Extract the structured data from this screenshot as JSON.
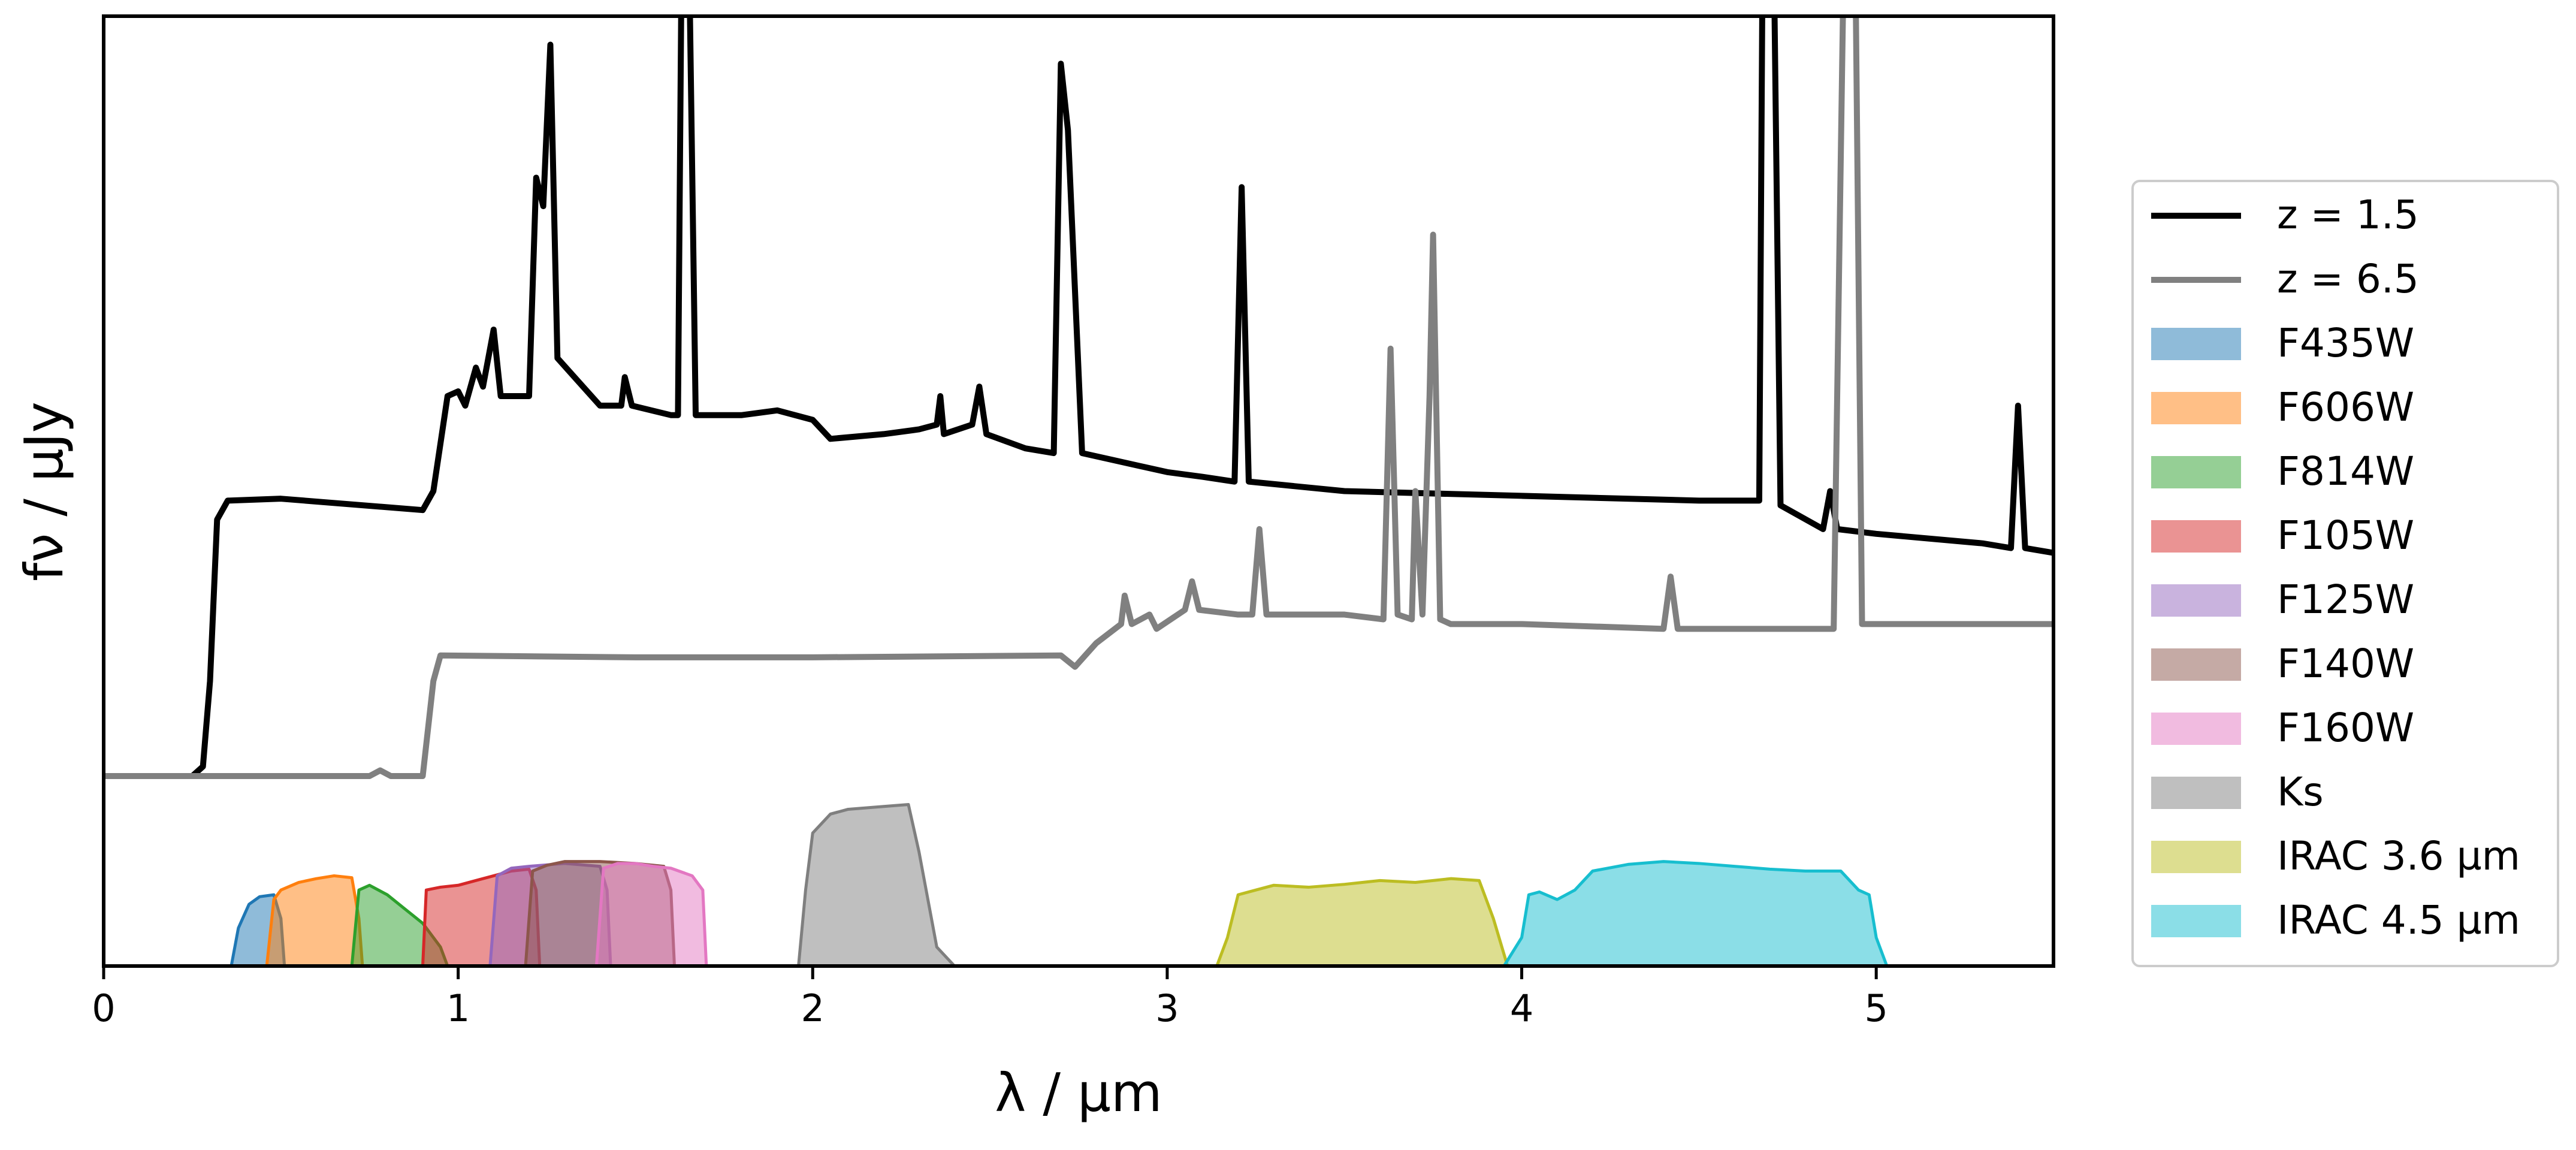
{
  "chart_data": {
    "type": "line",
    "xlabel": "λ / μm",
    "ylabel": "fν / μJy",
    "xlim": [
      0,
      5.5
    ],
    "ylim": [
      0,
      100
    ],
    "xticks": [
      0,
      1,
      2,
      3,
      4,
      5
    ],
    "legend": "outside right",
    "series": [
      {
        "name": "z = 1.5",
        "kind": "line",
        "color": "#000000",
        "x": [
          0,
          0.25,
          0.28,
          0.3,
          0.32,
          0.35,
          0.5,
          0.9,
          0.93,
          0.97,
          1.0,
          1.02,
          1.05,
          1.07,
          1.1,
          1.12,
          1.2,
          1.22,
          1.24,
          1.26,
          1.28,
          1.4,
          1.46,
          1.47,
          1.49,
          1.6,
          1.62,
          1.63,
          1.65,
          1.67,
          1.8,
          1.9,
          2.0,
          2.05,
          2.2,
          2.3,
          2.35,
          2.36,
          2.37,
          2.45,
          2.47,
          2.49,
          2.6,
          2.68,
          2.7,
          2.72,
          2.76,
          3.0,
          3.1,
          3.19,
          3.21,
          3.23,
          3.5,
          4.0,
          4.5,
          4.67,
          4.68,
          4.71,
          4.73,
          4.85,
          4.87,
          4.89,
          5.0,
          5.3,
          5.38,
          5.4,
          5.42,
          5.5
        ],
        "values": [
          20,
          20,
          21,
          30,
          47,
          49,
          49.2,
          48,
          50,
          60,
          60.5,
          59,
          63,
          61,
          67,
          60,
          60,
          83,
          80,
          97,
          64,
          59,
          59,
          62,
          59,
          58,
          58,
          105,
          110,
          58,
          58,
          58.5,
          57.5,
          55.5,
          56,
          56.5,
          57,
          60,
          56,
          57,
          61,
          56,
          54.5,
          54,
          95,
          88,
          54,
          52,
          51.5,
          51,
          82,
          51,
          50,
          49.5,
          49,
          49,
          110,
          110,
          48.5,
          46,
          50,
          46,
          45.5,
          44.5,
          44,
          59,
          44,
          43.5
        ]
      },
      {
        "name": "z = 6.5",
        "kind": "line",
        "color": "#808080",
        "x": [
          0,
          0.75,
          0.78,
          0.81,
          0.9,
          0.93,
          0.95,
          1.5,
          2.0,
          2.7,
          2.74,
          2.8,
          2.87,
          2.88,
          2.9,
          2.95,
          2.97,
          3.05,
          3.07,
          3.09,
          3.2,
          3.24,
          3.26,
          3.28,
          3.5,
          3.61,
          3.63,
          3.65,
          3.69,
          3.7,
          3.72,
          3.74,
          3.75,
          3.77,
          3.8,
          4.0,
          4.4,
          4.42,
          4.44,
          4.88,
          4.91,
          4.94,
          4.96,
          5.5
        ],
        "values": [
          20,
          20,
          20.6,
          20,
          20,
          30,
          32.7,
          32.5,
          32.5,
          32.7,
          31.5,
          34,
          36,
          39,
          36,
          37,
          35.5,
          37.5,
          40.5,
          37.5,
          37,
          37,
          46,
          37,
          37,
          36.5,
          65,
          37,
          36.5,
          50,
          37,
          60,
          77,
          36.5,
          36,
          36,
          35.5,
          41,
          35.5,
          35.5,
          110,
          110,
          36,
          36
        ]
      },
      {
        "name": "F435W",
        "kind": "area",
        "color": "#1f77b4",
        "x": [
          0.36,
          0.38,
          0.41,
          0.44,
          0.48,
          0.5,
          0.51
        ],
        "values": [
          0,
          4,
          6.5,
          7.3,
          7.5,
          5,
          0
        ]
      },
      {
        "name": "F606W",
        "kind": "area",
        "color": "#ff7f0e",
        "x": [
          0.46,
          0.48,
          0.5,
          0.55,
          0.6,
          0.65,
          0.7,
          0.72,
          0.73
        ],
        "values": [
          0,
          7,
          8,
          8.8,
          9.2,
          9.5,
          9.3,
          5,
          0
        ]
      },
      {
        "name": "F814W",
        "kind": "area",
        "color": "#2ca02c",
        "x": [
          0.7,
          0.72,
          0.75,
          0.8,
          0.85,
          0.9,
          0.95,
          0.97
        ],
        "values": [
          0,
          8,
          8.5,
          7.5,
          6,
          4.5,
          2,
          0
        ]
      },
      {
        "name": "F105W",
        "kind": "area",
        "color": "#d62728",
        "x": [
          0.9,
          0.91,
          0.95,
          1.0,
          1.05,
          1.1,
          1.15,
          1.2,
          1.22,
          1.23
        ],
        "values": [
          0,
          8,
          8.3,
          8.5,
          9,
          9.5,
          10,
          10.2,
          8,
          0
        ]
      },
      {
        "name": "F125W",
        "kind": "area",
        "color": "#9467bd",
        "x": [
          1.09,
          1.11,
          1.15,
          1.2,
          1.3,
          1.4,
          1.42,
          1.43
        ],
        "values": [
          0,
          9.5,
          10.3,
          10.5,
          10.8,
          10.5,
          8,
          0
        ]
      },
      {
        "name": "F140W",
        "kind": "area",
        "color": "#8c564b",
        "x": [
          1.19,
          1.21,
          1.25,
          1.3,
          1.4,
          1.5,
          1.58,
          1.6,
          1.61
        ],
        "values": [
          0,
          10,
          10.6,
          11,
          11,
          10.8,
          10.5,
          8,
          0
        ]
      },
      {
        "name": "F160W",
        "kind": "area",
        "color": "#e377c2",
        "x": [
          1.39,
          1.41,
          1.45,
          1.5,
          1.55,
          1.6,
          1.66,
          1.69,
          1.7
        ],
        "values": [
          0,
          10.3,
          10.8,
          10.8,
          10.5,
          10.3,
          9.5,
          8,
          0
        ]
      },
      {
        "name": "Ks",
        "kind": "area",
        "color": "#7f7f7f",
        "x": [
          1.96,
          1.98,
          2.0,
          2.05,
          2.1,
          2.2,
          2.27,
          2.3,
          2.35,
          2.4
        ],
        "values": [
          0,
          8,
          14,
          16,
          16.5,
          16.8,
          17,
          12,
          2,
          0
        ]
      },
      {
        "name": "IRAC 3.6 µm",
        "kind": "area",
        "color": "#bcbd22",
        "x": [
          3.14,
          3.17,
          3.2,
          3.25,
          3.3,
          3.4,
          3.5,
          3.6,
          3.7,
          3.8,
          3.88,
          3.92,
          3.96
        ],
        "values": [
          0,
          3,
          7.5,
          8,
          8.5,
          8.3,
          8.6,
          9,
          8.8,
          9.2,
          9,
          5,
          0
        ]
      },
      {
        "name": "IRAC 4.5 µm",
        "kind": "area",
        "color": "#17becf",
        "x": [
          3.95,
          4.0,
          4.02,
          4.05,
          4.1,
          4.15,
          4.2,
          4.3,
          4.4,
          4.5,
          4.6,
          4.7,
          4.8,
          4.9,
          4.95,
          4.98,
          5.0,
          5.03
        ],
        "values": [
          0,
          3,
          7.5,
          7.8,
          7,
          8,
          10,
          10.7,
          11,
          10.8,
          10.5,
          10.2,
          10,
          10,
          8,
          7.5,
          3,
          0
        ]
      }
    ]
  }
}
